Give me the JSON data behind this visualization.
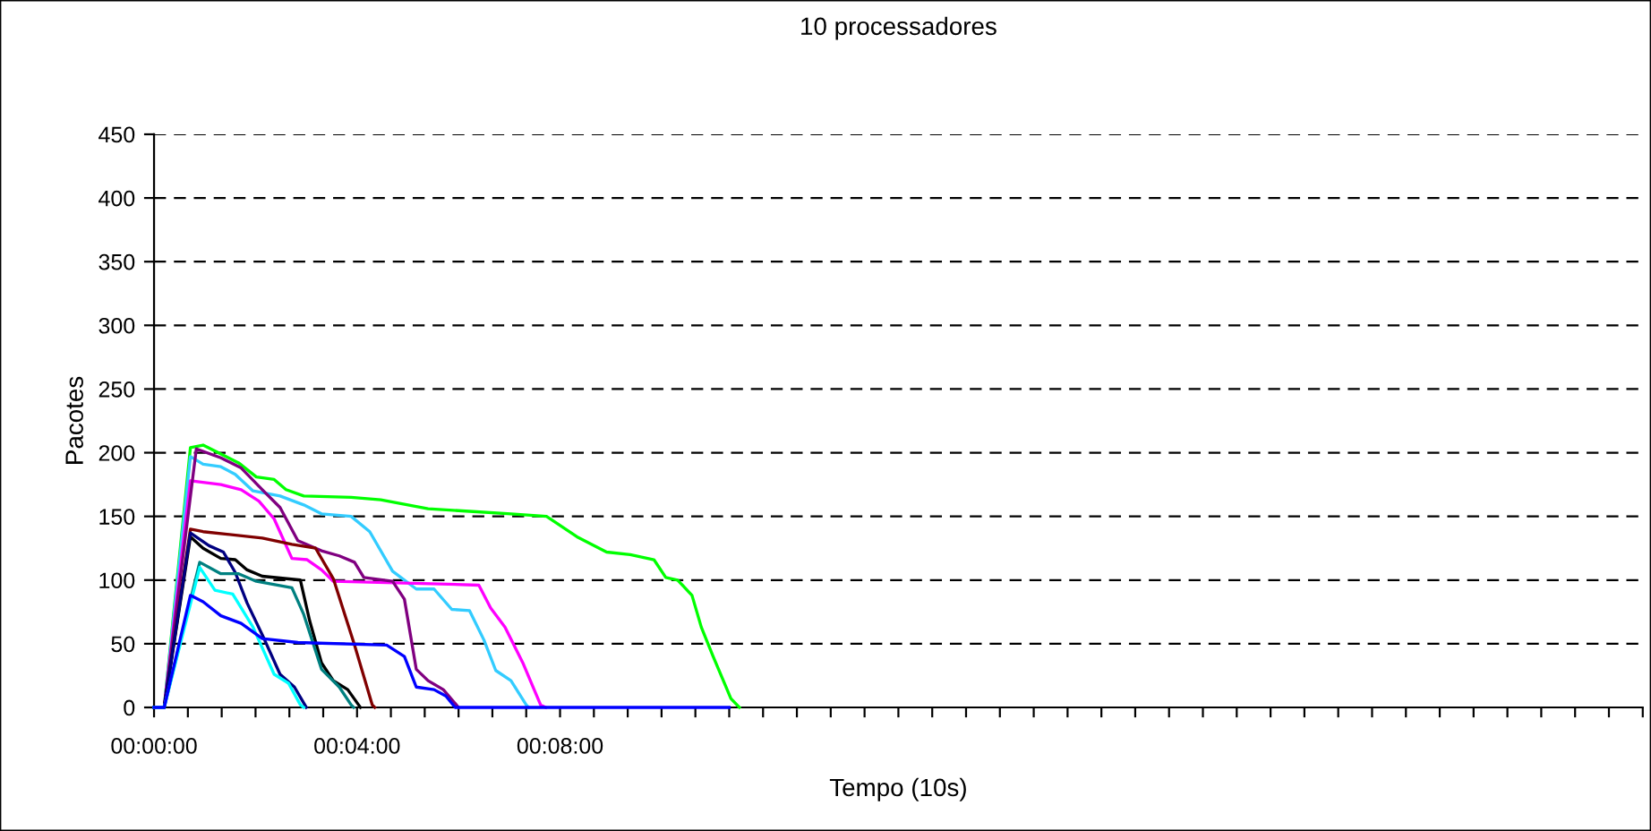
{
  "chart_data": {
    "type": "line",
    "title": "10 processadores",
    "xlabel": "Tempo (10s)",
    "ylabel": "Pacotes",
    "xlim": [
      0,
      1760
    ],
    "xticks": [
      {
        "value": 0,
        "label": "00:00:00"
      },
      {
        "value": 40,
        "label": null
      },
      {
        "value": 80,
        "label": null
      },
      {
        "value": 120,
        "label": null
      },
      {
        "value": 160,
        "label": null
      },
      {
        "value": 200,
        "label": null
      },
      {
        "value": 240,
        "label": "00:04:00"
      },
      {
        "value": 280,
        "label": null
      },
      {
        "value": 320,
        "label": null
      },
      {
        "value": 360,
        "label": null
      },
      {
        "value": 400,
        "label": null
      },
      {
        "value": 440,
        "label": null
      },
      {
        "value": 480,
        "label": "00:08:00"
      },
      {
        "value": 520,
        "label": null
      },
      {
        "value": 560,
        "label": null
      },
      {
        "value": 600,
        "label": null
      },
      {
        "value": 640,
        "label": null
      },
      {
        "value": 680,
        "label": null
      },
      {
        "value": 720,
        "label": null
      },
      {
        "value": 760,
        "label": null
      },
      {
        "value": 800,
        "label": null
      },
      {
        "value": 840,
        "label": null
      },
      {
        "value": 880,
        "label": null
      },
      {
        "value": 920,
        "label": null
      },
      {
        "value": 960,
        "label": null
      },
      {
        "value": 1000,
        "label": null
      },
      {
        "value": 1040,
        "label": null
      },
      {
        "value": 1080,
        "label": null
      },
      {
        "value": 1120,
        "label": null
      },
      {
        "value": 1160,
        "label": null
      },
      {
        "value": 1200,
        "label": null
      },
      {
        "value": 1240,
        "label": null
      },
      {
        "value": 1280,
        "label": null
      },
      {
        "value": 1320,
        "label": null
      },
      {
        "value": 1360,
        "label": null
      },
      {
        "value": 1400,
        "label": null
      },
      {
        "value": 1440,
        "label": null
      },
      {
        "value": 1480,
        "label": null
      },
      {
        "value": 1520,
        "label": null
      },
      {
        "value": 1560,
        "label": null
      },
      {
        "value": 1600,
        "label": null
      },
      {
        "value": 1640,
        "label": null
      },
      {
        "value": 1680,
        "label": null
      },
      {
        "value": 1720,
        "label": null
      },
      {
        "value": 1760,
        "label": null
      }
    ],
    "ylim": [
      0,
      450
    ],
    "yticks": [
      0,
      50,
      100,
      150,
      200,
      250,
      300,
      350,
      400,
      450
    ],
    "grid": "y",
    "line_style": "solid",
    "marker": "none",
    "series": [
      {
        "color": "#00ff00",
        "x": [
          0,
          12,
          43,
          58,
          100,
          121,
          142,
          156,
          177,
          233,
          268,
          324,
          373,
          422,
          464,
          500,
          535,
          563,
          591,
          605,
          619,
          636,
          647,
          661,
          682,
          692
        ],
        "values": [
          0,
          0,
          204,
          206,
          192,
          181,
          179,
          171,
          166,
          165,
          163,
          156,
          154,
          152,
          150,
          134,
          122,
          120,
          116,
          102,
          100,
          88,
          63,
          40,
          7,
          0
        ]
      },
      {
        "color": "#33ccff",
        "x": [
          0,
          12,
          43,
          58,
          79,
          96,
          117,
          149,
          177,
          198,
          233,
          255,
          282,
          310,
          331,
          352,
          373,
          390,
          404,
          422,
          440,
          443
        ],
        "values": [
          0,
          0,
          197,
          191,
          189,
          183,
          170,
          166,
          159,
          152,
          150,
          138,
          107,
          93,
          93,
          77,
          76,
          53,
          29,
          21,
          2,
          0
        ]
      },
      {
        "color": "#ff00ff",
        "x": [
          0,
          12,
          43,
          79,
          103,
          124,
          142,
          163,
          181,
          198,
          212,
          338,
          384,
          398,
          415,
          436,
          457,
          463
        ],
        "values": [
          0,
          0,
          178,
          175,
          171,
          162,
          148,
          117,
          116,
          108,
          99,
          97,
          96,
          78,
          63,
          35,
          2,
          0
        ]
      },
      {
        "color": "#800080",
        "x": [
          0,
          12,
          50,
          79,
          103,
          128,
          149,
          170,
          198,
          219,
          237,
          248,
          282,
          296,
          310,
          324,
          342,
          360
        ],
        "values": [
          0,
          0,
          203,
          196,
          188,
          171,
          157,
          131,
          123,
          119,
          114,
          102,
          99,
          85,
          30,
          21,
          14,
          0
        ]
      },
      {
        "color": "#800000",
        "x": [
          0,
          12,
          43,
          58,
          128,
          163,
          191,
          212,
          237,
          258,
          261
        ],
        "values": [
          0,
          0,
          140,
          138,
          133,
          128,
          125,
          101,
          49,
          2,
          0
        ]
      },
      {
        "color": "#000000",
        "x": [
          0,
          12,
          43,
          58,
          79,
          96,
          110,
          128,
          173,
          184,
          198,
          212,
          229,
          244
        ],
        "values": [
          0,
          0,
          134,
          125,
          117,
          116,
          108,
          103,
          100,
          68,
          35,
          21,
          14,
          0
        ]
      },
      {
        "color": "#000080",
        "x": [
          0,
          12,
          43,
          65,
          82,
          96,
          110,
          128,
          149,
          166,
          180
        ],
        "values": [
          0,
          0,
          137,
          127,
          122,
          106,
          82,
          57,
          26,
          16,
          0
        ]
      },
      {
        "color": "#008080",
        "x": [
          0,
          12,
          54,
          79,
          100,
          121,
          163,
          177,
          198,
          219,
          233,
          236
        ],
        "values": [
          0,
          0,
          114,
          105,
          105,
          99,
          94,
          73,
          30,
          16,
          2,
          0
        ]
      },
      {
        "color": "#00ffff",
        "x": [
          0,
          12,
          54,
          72,
          93,
          117,
          142,
          159,
          173,
          177
        ],
        "values": [
          0,
          0,
          110,
          92,
          89,
          63,
          26,
          19,
          2,
          0
        ]
      },
      {
        "color": "#0000ff",
        "x": [
          0,
          12,
          43,
          58,
          79,
          103,
          128,
          170,
          275,
          296,
          310,
          331,
          345,
          356,
          680
        ],
        "values": [
          0,
          0,
          88,
          83,
          72,
          66,
          54,
          51,
          49,
          40,
          16,
          14,
          9,
          0,
          0
        ]
      }
    ]
  }
}
